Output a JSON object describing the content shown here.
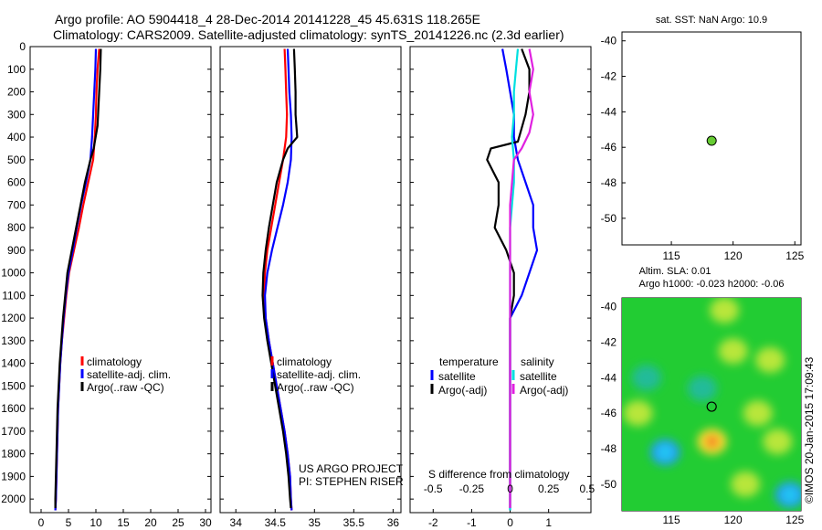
{
  "title": {
    "line1": "Argo profile: AO 5904418_4 28-Dec-2014 20141228_45 45.631S 118.265E",
    "line2": "Climatology: CARS2009. Satellite-adjusted climatology: synTS_20141226.nc (2.3d earlier)"
  },
  "credits": {
    "project": "US ARGO PROJECT",
    "pi": "PI: STEPHEN RISER",
    "imos": "©IMOS 20-Jan-2015 17:09:43"
  },
  "colors": {
    "climatology": "#ff0000",
    "satellite": "#0000ff",
    "argo": "#000000",
    "t_sat": "#0000ff",
    "t_argo": "#000000",
    "s_sat": "#00e0e0",
    "s_argo": "#e020e0",
    "position_marker": "#66cc33"
  },
  "chart_data": [
    {
      "type": "line",
      "panel": "temperature",
      "xlabel": "temperature (deg C)",
      "xlim": [
        -2,
        31
      ],
      "ylim": [
        2060,
        0
      ],
      "y_reversed": true,
      "xticks": [
        0,
        5,
        10,
        15,
        20,
        25,
        30
      ],
      "yticks": [
        0,
        100,
        200,
        300,
        400,
        500,
        600,
        700,
        800,
        900,
        1000,
        1100,
        1200,
        1300,
        1400,
        1500,
        1600,
        1700,
        1800,
        1900,
        2000
      ],
      "legend": [
        "climatology",
        "satellite-adj. clim.",
        "Argo(..raw -QC)"
      ],
      "legend_placement": "lower-right",
      "series": [
        {
          "name": "climatology",
          "color": "#ff0000",
          "points": [
            [
              10.6,
              10
            ],
            [
              10.3,
              100
            ],
            [
              10.1,
              200
            ],
            [
              10.0,
              300
            ],
            [
              9.8,
              400
            ],
            [
              9.5,
              500
            ],
            [
              8.6,
              600
            ],
            [
              7.7,
              700
            ],
            [
              6.9,
              800
            ],
            [
              6.0,
              900
            ],
            [
              5.1,
              1000
            ],
            [
              4.6,
              1100
            ],
            [
              4.2,
              1200
            ],
            [
              3.8,
              1300
            ],
            [
              3.5,
              1400
            ],
            [
              3.3,
              1500
            ],
            [
              3.1,
              1600
            ],
            [
              3.0,
              1700
            ],
            [
              2.9,
              1800
            ],
            [
              2.8,
              1900
            ],
            [
              2.7,
              2000
            ],
            [
              2.6,
              2050
            ]
          ]
        },
        {
          "name": "satellite-adj. clim.",
          "color": "#0000ff",
          "points": [
            [
              10.0,
              10
            ],
            [
              9.9,
              100
            ],
            [
              9.7,
              200
            ],
            [
              9.5,
              300
            ],
            [
              9.3,
              400
            ],
            [
              9.0,
              500
            ],
            [
              8.2,
              600
            ],
            [
              7.3,
              700
            ],
            [
              6.5,
              800
            ],
            [
              5.8,
              900
            ],
            [
              5.0,
              1000
            ],
            [
              4.5,
              1100
            ],
            [
              4.1,
              1200
            ],
            [
              3.8,
              1300
            ],
            [
              3.5,
              1400
            ],
            [
              3.3,
              1500
            ],
            [
              3.1,
              1600
            ],
            [
              3.0,
              1700
            ],
            [
              2.9,
              1800
            ],
            [
              2.8,
              1900
            ],
            [
              2.7,
              2000
            ],
            [
              2.6,
              2050
            ]
          ]
        },
        {
          "name": "Argo(..raw -QC)",
          "color": "#000000",
          "points": [
            [
              10.9,
              10
            ],
            [
              10.8,
              100
            ],
            [
              10.6,
              200
            ],
            [
              10.4,
              300
            ],
            [
              10.3,
              350
            ],
            [
              9.6,
              450
            ],
            [
              9.0,
              500
            ],
            [
              8.0,
              600
            ],
            [
              7.2,
              700
            ],
            [
              6.4,
              800
            ],
            [
              5.6,
              900
            ],
            [
              4.8,
              1000
            ],
            [
              4.4,
              1100
            ],
            [
              4.0,
              1200
            ],
            [
              3.7,
              1300
            ],
            [
              3.4,
              1400
            ],
            [
              3.2,
              1500
            ],
            [
              3.0,
              1600
            ],
            [
              2.9,
              1700
            ],
            [
              2.8,
              1800
            ],
            [
              2.7,
              1900
            ],
            [
              2.6,
              2000
            ],
            [
              2.6,
              2040
            ]
          ]
        }
      ]
    },
    {
      "type": "line",
      "panel": "salinity",
      "xlabel": "salinity",
      "xlim": [
        33.8,
        36.1
      ],
      "ylim": [
        2060,
        0
      ],
      "y_reversed": true,
      "xticks": [
        34,
        34.5,
        35,
        35.5,
        36
      ],
      "legend": [
        "climatology",
        "satellite-adj. clim.",
        "Argo(..raw -QC)"
      ],
      "legend_placement": "lower-right",
      "series": [
        {
          "name": "climatology",
          "color": "#ff0000",
          "points": [
            [
              34.62,
              10
            ],
            [
              34.63,
              100
            ],
            [
              34.64,
              200
            ],
            [
              34.65,
              300
            ],
            [
              34.64,
              400
            ],
            [
              34.6,
              500
            ],
            [
              34.55,
              600
            ],
            [
              34.5,
              700
            ],
            [
              34.45,
              800
            ],
            [
              34.4,
              900
            ],
            [
              34.37,
              1000
            ],
            [
              34.36,
              1100
            ],
            [
              34.38,
              1200
            ],
            [
              34.42,
              1300
            ],
            [
              34.47,
              1400
            ],
            [
              34.52,
              1500
            ],
            [
              34.57,
              1600
            ],
            [
              34.62,
              1700
            ],
            [
              34.66,
              1800
            ],
            [
              34.69,
              1900
            ],
            [
              34.7,
              2000
            ],
            [
              34.71,
              2050
            ]
          ]
        },
        {
          "name": "satellite-adj. clim.",
          "color": "#0000ff",
          "points": [
            [
              34.66,
              10
            ],
            [
              34.67,
              100
            ],
            [
              34.68,
              200
            ],
            [
              34.7,
              300
            ],
            [
              34.71,
              400
            ],
            [
              34.7,
              500
            ],
            [
              34.66,
              600
            ],
            [
              34.6,
              700
            ],
            [
              34.53,
              800
            ],
            [
              34.46,
              900
            ],
            [
              34.4,
              1000
            ],
            [
              34.37,
              1100
            ],
            [
              34.38,
              1200
            ],
            [
              34.42,
              1300
            ],
            [
              34.47,
              1400
            ],
            [
              34.52,
              1500
            ],
            [
              34.57,
              1600
            ],
            [
              34.62,
              1700
            ],
            [
              34.66,
              1800
            ],
            [
              34.69,
              1900
            ],
            [
              34.7,
              2000
            ],
            [
              34.71,
              2050
            ]
          ]
        },
        {
          "name": "Argo(..raw -QC)",
          "color": "#000000",
          "points": [
            [
              34.74,
              10
            ],
            [
              34.75,
              100
            ],
            [
              34.76,
              200
            ],
            [
              34.76,
              300
            ],
            [
              34.78,
              400
            ],
            [
              34.66,
              450
            ],
            [
              34.6,
              500
            ],
            [
              34.52,
              600
            ],
            [
              34.47,
              700
            ],
            [
              34.42,
              800
            ],
            [
              34.38,
              900
            ],
            [
              34.35,
              1000
            ],
            [
              34.34,
              1100
            ],
            [
              34.36,
              1200
            ],
            [
              34.4,
              1300
            ],
            [
              34.45,
              1400
            ],
            [
              34.5,
              1500
            ],
            [
              34.55,
              1600
            ],
            [
              34.6,
              1700
            ],
            [
              34.64,
              1800
            ],
            [
              34.67,
              1900
            ],
            [
              34.69,
              2000
            ],
            [
              34.7,
              2040
            ]
          ]
        }
      ]
    },
    {
      "type": "line",
      "panel": "difference",
      "xlabel": "T difference from climatology",
      "xlabel_top": "S difference from climatology",
      "xlim": [
        -2.6,
        2.1
      ],
      "ylim": [
        2060,
        0
      ],
      "y_reversed": true,
      "xticks": [
        -2,
        -1,
        0,
        1
      ],
      "xticks_s": [
        {
          "label": "-0.5",
          "at": -2
        },
        {
          "label": "-0.25",
          "at": -1
        },
        {
          "label": "0",
          "at": 0
        },
        {
          "label": "0.25",
          "at": 1
        },
        {
          "label": "0.5",
          "at": 2
        }
      ],
      "legend_groups": [
        {
          "title": "temperature",
          "items": [
            "satellite",
            "Argo(-adj)"
          ]
        },
        {
          "title": "salinity",
          "items": [
            "satellite",
            "Argo(-adj)"
          ]
        }
      ],
      "series": [
        {
          "name": "satellite",
          "group": "temperature",
          "color": "#0000ff",
          "points": [
            [
              -0.2,
              10
            ],
            [
              -0.1,
              100
            ],
            [
              0.0,
              200
            ],
            [
              0.1,
              300
            ],
            [
              0.1,
              400
            ],
            [
              0.2,
              500
            ],
            [
              0.4,
              600
            ],
            [
              0.6,
              700
            ],
            [
              0.6,
              800
            ],
            [
              0.7,
              900
            ],
            [
              0.5,
              1000
            ],
            [
              0.3,
              1100
            ],
            [
              0.0,
              1200
            ],
            [
              0.0,
              1400
            ],
            [
              0.0,
              1700
            ],
            [
              0.0,
              2000
            ],
            [
              0.0,
              2050
            ]
          ]
        },
        {
          "name": "Argo(-adj)",
          "group": "temperature",
          "color": "#000000",
          "points": [
            [
              0.3,
              10
            ],
            [
              0.5,
              100
            ],
            [
              0.5,
              200
            ],
            [
              0.4,
              300
            ],
            [
              0.2,
              420
            ],
            [
              -0.5,
              450
            ],
            [
              -0.6,
              500
            ],
            [
              -0.3,
              600
            ],
            [
              -0.3,
              700
            ],
            [
              -0.4,
              800
            ],
            [
              -0.1,
              900
            ],
            [
              0.1,
              1000
            ],
            [
              0.1,
              1100
            ],
            [
              0.0,
              1200
            ],
            [
              0.0,
              1400
            ],
            [
              0.0,
              1700
            ],
            [
              0.0,
              2040
            ]
          ]
        },
        {
          "name": "satellite",
          "group": "salinity",
          "color": "#00e0e0",
          "points": [
            [
              0.2,
              10
            ],
            [
              0.15,
              100
            ],
            [
              0.1,
              200
            ],
            [
              0.1,
              300
            ],
            [
              0.05,
              400
            ],
            [
              0.1,
              500
            ],
            [
              0.1,
              600
            ],
            [
              0.0,
              800
            ],
            [
              0.0,
              1000
            ],
            [
              0.0,
              1200
            ],
            [
              0.0,
              1500
            ],
            [
              0.0,
              1800
            ],
            [
              0.0,
              2050
            ]
          ]
        },
        {
          "name": "Argo(-adj)",
          "group": "salinity",
          "color": "#e020e0",
          "points": [
            [
              0.5,
              10
            ],
            [
              0.6,
              100
            ],
            [
              0.5,
              200
            ],
            [
              0.6,
              300
            ],
            [
              0.5,
              380
            ],
            [
              0.3,
              450
            ],
            [
              0.1,
              500
            ],
            [
              0.0,
              700
            ],
            [
              0.0,
              900
            ],
            [
              0.0,
              1100
            ],
            [
              0.0,
              1400
            ],
            [
              0.0,
              1700
            ],
            [
              0.0,
              2040
            ]
          ]
        }
      ]
    },
    {
      "type": "scatter",
      "panel": "sst-map",
      "title": "sat. SST: NaN Argo: 10.9",
      "xlim": [
        111,
        125.5
      ],
      "ylim": [
        -51.5,
        -39.5
      ],
      "xticks": [
        115,
        120,
        125
      ],
      "yticks": [
        -40,
        -42,
        -44,
        -46,
        -48,
        -50
      ],
      "points": [
        {
          "lon": 118.265,
          "lat": -45.631
        }
      ]
    },
    {
      "type": "heatmap",
      "panel": "sla-map",
      "title_line1": "Altim. SLA: 0.01",
      "title_line2": "Argo h1000: -0.023 h2000: -0.06",
      "xlim": [
        111,
        125.5
      ],
      "ylim": [
        -51.5,
        -39.5
      ],
      "xticks": [
        115,
        120,
        125
      ],
      "yticks": [
        -40,
        -42,
        -44,
        -46,
        -48,
        -50
      ],
      "points": [
        {
          "lon": 118.265,
          "lat": -45.631
        }
      ],
      "features": [
        {
          "lon": 114.5,
          "lat": -48.2,
          "level": -1
        },
        {
          "lon": 118.3,
          "lat": -47.6,
          "level": 1
        },
        {
          "lon": 117.5,
          "lat": -44.6,
          "level": -0.5
        },
        {
          "lon": 120.0,
          "lat": -42.5,
          "level": 0.4
        },
        {
          "lon": 123.0,
          "lat": -43.0,
          "level": 0.4
        },
        {
          "lon": 124.6,
          "lat": -50.6,
          "level": -1
        },
        {
          "lon": 123.6,
          "lat": -47.6,
          "level": 0.3
        },
        {
          "lon": 112.3,
          "lat": -46.0,
          "level": 0.3
        },
        {
          "lon": 119.3,
          "lat": -40.2,
          "level": 0.3
        },
        {
          "lon": 122.0,
          "lat": -46.0,
          "level": 0.3
        },
        {
          "lon": 121.0,
          "lat": -50.0,
          "level": 0.3
        },
        {
          "lon": 113.0,
          "lat": -44.0,
          "level": -0.3
        }
      ]
    }
  ]
}
